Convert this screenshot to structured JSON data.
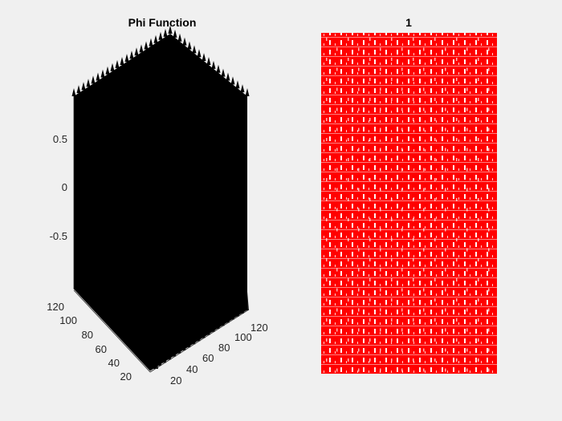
{
  "chart_data": [
    {
      "type": "surface",
      "title": "Phi Function",
      "z_ticks": [
        "0.5",
        "0",
        "-0.5"
      ],
      "z_tick_values": [
        0.5,
        0,
        -0.5
      ],
      "zlim": [
        -1,
        1
      ],
      "x_ticks": [
        "20",
        "40",
        "60",
        "80",
        "100",
        "120"
      ],
      "x_tick_values": [
        20,
        40,
        60,
        80,
        100,
        120
      ],
      "y_ticks": [
        "20",
        "40",
        "60",
        "80",
        "100",
        "120"
      ],
      "y_tick_values": [
        20,
        40,
        60,
        80,
        100,
        120
      ],
      "xlim": [
        1,
        128
      ],
      "ylim": [
        1,
        128
      ],
      "surface_color": "#000000",
      "background": "#f0f0f0"
    },
    {
      "type": "image",
      "title": "1",
      "fill_color": "#ff0000",
      "pattern_color": "#ffffff"
    }
  ]
}
